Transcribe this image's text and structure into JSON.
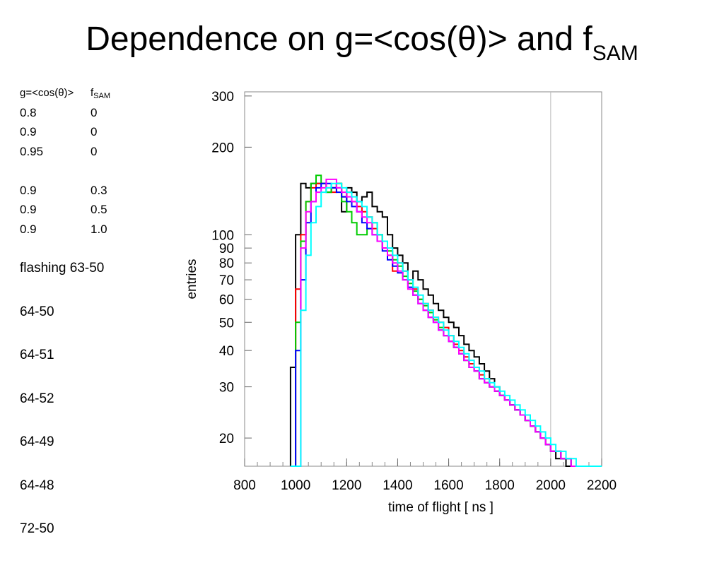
{
  "title": {
    "main": "Dependence on g=<cos(θ)> and f",
    "sub": "SAM"
  },
  "table": {
    "header": {
      "col1": "g=<cos(θ)>",
      "col2_main": "f",
      "col2_sub": "SAM"
    },
    "group1": [
      {
        "g": "0.8",
        "f": "0"
      },
      {
        "g": "0.9",
        "f": "0"
      },
      {
        "g": "0.95",
        "f": "0"
      }
    ],
    "group2": [
      {
        "g": "0.9",
        "f": "0.3"
      },
      {
        "g": "0.9",
        "f": "0.5"
      },
      {
        "g": "0.9",
        "f": "1.0"
      }
    ]
  },
  "runs": [
    "flashing 63-50",
    "64-50",
    "64-51",
    "64-52",
    "64-49",
    "64-48",
    "72-50"
  ],
  "chart_data": {
    "type": "line",
    "drawstyle": "histogram-steps",
    "xlabel": "time of flight [ ns ]",
    "ylabel": "entries",
    "xlim": [
      800,
      2200
    ],
    "ylim": [
      16,
      310
    ],
    "yscale": "log",
    "xticks": [
      800,
      1000,
      1200,
      1400,
      1600,
      1800,
      2000,
      2200
    ],
    "yticks": [
      20,
      30,
      40,
      50,
      60,
      70,
      80,
      90,
      100,
      200,
      300
    ],
    "bin_edges_start": 980,
    "bin_width": 20,
    "series": [
      {
        "color": "#000000",
        "values": [
          35,
          100,
          150,
          145,
          150,
          150,
          150,
          140,
          145,
          150,
          120,
          145,
          140,
          130,
          135,
          140,
          125,
          120,
          115,
          100,
          90,
          85,
          80,
          70,
          75,
          70,
          65,
          62,
          58,
          55,
          52,
          50,
          48,
          45,
          42,
          40,
          38,
          36,
          34,
          32,
          30,
          28,
          27,
          26,
          25,
          24,
          23,
          22,
          21,
          20,
          19,
          18,
          17,
          17,
          16,
          16,
          16,
          16,
          16,
          16,
          16,
          16
        ]
      },
      {
        "color": "#ff0000",
        "values": [
          16,
          65,
          100,
          130,
          145,
          150,
          150,
          145,
          140,
          145,
          135,
          140,
          130,
          125,
          120,
          115,
          105,
          100,
          90,
          85,
          75,
          80,
          75,
          70,
          65,
          60,
          58,
          55,
          52,
          50,
          48,
          45,
          42,
          40,
          38,
          36,
          35,
          33,
          32,
          30,
          29,
          28,
          27,
          26,
          25,
          24,
          23,
          22,
          21,
          20,
          19,
          18,
          18,
          17,
          17,
          16,
          16,
          16,
          16,
          16,
          16,
          16
        ]
      },
      {
        "color": "#00cc00",
        "values": [
          16,
          50,
          95,
          130,
          150,
          160,
          150,
          140,
          145,
          150,
          130,
          120,
          110,
          100,
          100,
          105,
          110,
          100,
          95,
          88,
          82,
          78,
          72,
          68,
          64,
          60,
          57,
          54,
          51,
          48,
          45,
          43,
          41,
          39,
          37,
          35,
          34,
          32,
          31,
          30,
          29,
          28,
          27,
          26,
          25,
          24,
          23,
          22,
          21,
          20,
          19,
          18,
          18,
          17,
          17,
          16,
          16,
          16,
          16,
          16,
          16,
          16
        ]
      },
      {
        "color": "#0000ff",
        "values": [
          16,
          40,
          70,
          110,
          130,
          145,
          150,
          150,
          145,
          140,
          135,
          130,
          125,
          120,
          110,
          105,
          100,
          95,
          88,
          82,
          78,
          74,
          70,
          66,
          62,
          58,
          55,
          52,
          50,
          47,
          45,
          43,
          41,
          39,
          37,
          35,
          34,
          32,
          31,
          30,
          29,
          28,
          27,
          26,
          25,
          24,
          23,
          22,
          21,
          20,
          19,
          18,
          18,
          17,
          17,
          16,
          16,
          16,
          16,
          16,
          16,
          16
        ]
      },
      {
        "color": "#ff00ff",
        "values": [
          16,
          16,
          90,
          120,
          130,
          140,
          145,
          155,
          155,
          145,
          140,
          135,
          130,
          120,
          115,
          110,
          100,
          95,
          90,
          85,
          80,
          75,
          70,
          65,
          62,
          58,
          55,
          52,
          50,
          47,
          45,
          43,
          41,
          39,
          37,
          35,
          34,
          32,
          31,
          30,
          29,
          28,
          27,
          26,
          25,
          24,
          23,
          22,
          21,
          20,
          19,
          18,
          18,
          17,
          17,
          16,
          16,
          16,
          16,
          16,
          16,
          16
        ]
      },
      {
        "color": "#00ffff",
        "values": [
          16,
          16,
          55,
          85,
          110,
          125,
          140,
          145,
          150,
          150,
          145,
          140,
          135,
          130,
          125,
          115,
          110,
          100,
          95,
          90,
          85,
          80,
          75,
          70,
          66,
          62,
          58,
          55,
          52,
          50,
          47,
          45,
          43,
          41,
          39,
          37,
          35,
          34,
          32,
          31,
          30,
          29,
          28,
          27,
          26,
          25,
          24,
          23,
          22,
          21,
          20,
          19,
          18,
          18,
          17,
          17,
          16,
          16,
          16,
          16,
          16,
          16
        ]
      }
    ]
  }
}
